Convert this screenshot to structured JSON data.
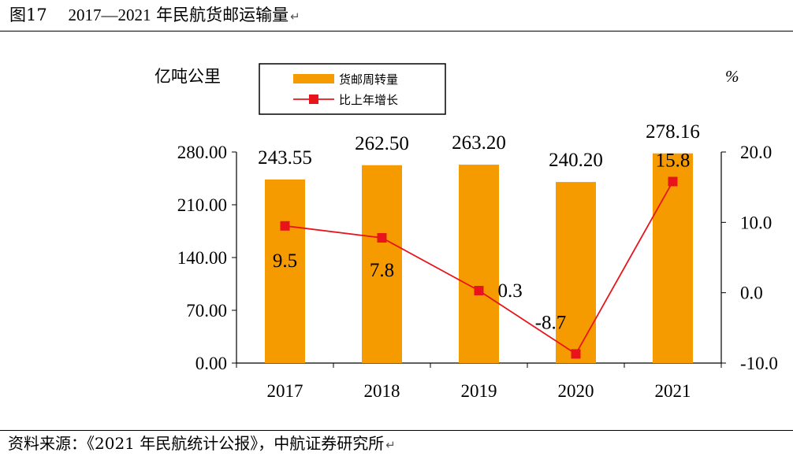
{
  "figure": {
    "title_prefix": "图17",
    "title_years": "2017—2021",
    "title_text": "年民航货邮运输量",
    "source": "资料来源：《2021 年民航统计公报》，中航证券研究所"
  },
  "colors": {
    "bar": "#F59B00",
    "line": "#E8141B",
    "axis": "#000000"
  },
  "chart_data": {
    "type": "bar",
    "categories": [
      "2017",
      "2018",
      "2019",
      "2020",
      "2021"
    ],
    "series": [
      {
        "name": "货邮周转量",
        "kind": "bar",
        "axis": "left",
        "values": [
          243.55,
          262.5,
          263.2,
          240.2,
          278.16
        ],
        "labels": [
          "243.55",
          "262.50",
          "263.20",
          "240.20",
          "278.16"
        ]
      },
      {
        "name": "比上年增长",
        "kind": "line",
        "axis": "right",
        "values": [
          9.5,
          7.8,
          0.3,
          -8.7,
          15.8
        ],
        "labels": [
          "9.5",
          "7.8",
          "0.3",
          "-8.7",
          "15.8"
        ]
      }
    ],
    "y_left": {
      "unit": "亿吨公里",
      "ylim": [
        0,
        280
      ],
      "ticks": [
        0,
        70,
        140,
        210,
        280
      ],
      "tick_labels": [
        "0.00",
        "70.00",
        "140.00",
        "210.00",
        "280.00"
      ]
    },
    "y_right": {
      "unit": "%",
      "ylim": [
        -10,
        20
      ],
      "ticks": [
        -10,
        0,
        10,
        20
      ],
      "tick_labels": [
        "-10.0",
        "0.0",
        "10.0",
        "20.0"
      ]
    },
    "legend": {
      "position": "top-left",
      "entries": [
        "货邮周转量",
        "比上年增长"
      ]
    }
  }
}
